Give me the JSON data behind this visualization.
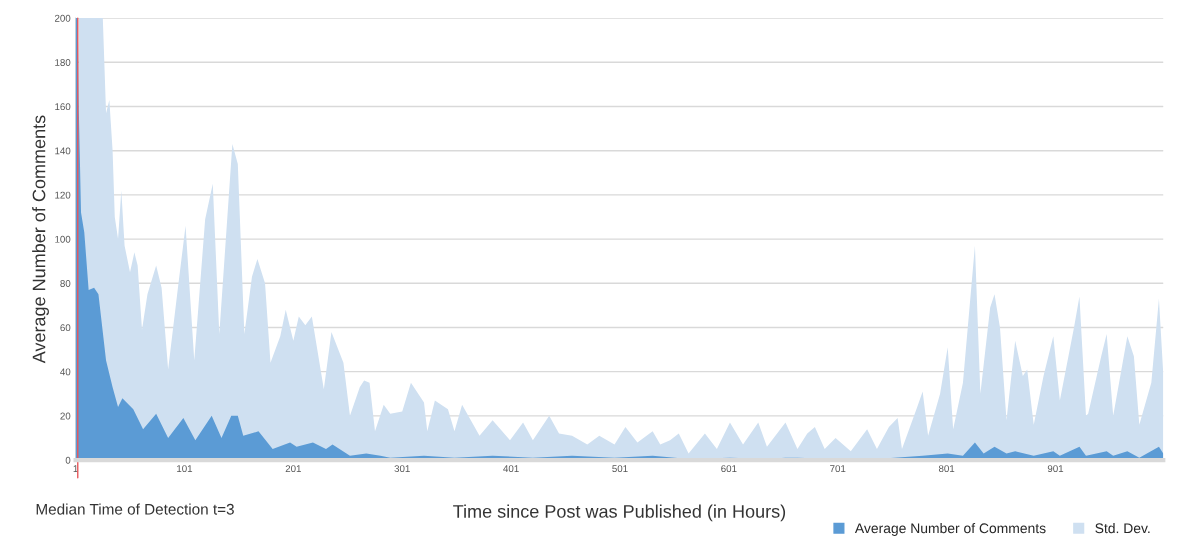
{
  "chart_data": {
    "type": "area",
    "xlabel": "Time since Post was Published (in Hours)",
    "ylabel": "Average Number of Comments",
    "xlim": [
      1,
      1000
    ],
    "xticks": [
      1,
      101,
      201,
      301,
      401,
      501,
      601,
      701,
      801,
      901
    ],
    "ylim": [
      0,
      200
    ],
    "yticks": [
      0,
      20,
      40,
      60,
      80,
      100,
      120,
      140,
      160,
      180,
      200
    ],
    "grid": "y",
    "legend": "bottom right",
    "ref_lines": [
      {
        "axis": "x",
        "value": 3,
        "color": "#e8575a"
      }
    ],
    "annotations": [
      "Median Time of Detection t=3"
    ],
    "series": [
      {
        "name": "Average Number of Comments",
        "color": "#5b9bd5",
        "x": [
          1,
          3,
          4,
          6,
          9,
          13,
          18,
          22,
          29,
          35,
          40,
          44,
          54,
          63,
          75,
          86,
          100,
          111,
          126,
          135,
          144,
          150,
          155,
          169,
          182,
          198,
          204,
          219,
          231,
          237,
          253,
          268,
          281,
          290,
          321,
          349,
          384,
          421,
          457,
          496,
          531,
          564,
          602,
          636,
          653,
          664,
          699,
          737,
          779,
          802,
          816,
          827,
          835,
          845,
          856,
          864,
          881,
          899,
          905,
          923,
          929,
          948,
          954,
          967,
          978,
          996,
          1000
        ],
        "values": [
          200,
          200,
          158,
          112,
          103,
          77,
          78,
          75,
          45,
          33,
          24,
          28,
          23,
          14,
          21,
          10,
          19,
          9,
          20,
          10,
          20,
          20,
          11,
          13,
          5,
          8,
          6,
          8,
          5,
          7,
          2,
          3,
          2,
          1,
          2,
          1,
          2,
          1,
          2,
          1,
          2,
          0.5,
          1,
          0.5,
          1,
          1,
          0.5,
          0.5,
          2,
          3,
          2,
          8,
          3,
          6,
          3,
          4,
          2,
          4,
          2,
          6,
          2,
          4,
          2,
          4,
          1,
          6,
          3
        ]
      },
      {
        "name": "Std. Dev.",
        "color": "#cfe0f1",
        "x": [
          4,
          26,
          29,
          32,
          35,
          37,
          40,
          43,
          46,
          51,
          55,
          58,
          62,
          67,
          75,
          80,
          86,
          95,
          102,
          110,
          120,
          127,
          133,
          145,
          150,
          156,
          163,
          168,
          175,
          180,
          189,
          194,
          201,
          206,
          212,
          218,
          229,
          236,
          247,
          253,
          262,
          266,
          271,
          276,
          284,
          290,
          301,
          309,
          321,
          324,
          331,
          343,
          349,
          356,
          372,
          384,
          400,
          412,
          421,
          436,
          445,
          457,
          471,
          482,
          496,
          506,
          517,
          531,
          538,
          547,
          555,
          564,
          579,
          590,
          602,
          614,
          628,
          636,
          653,
          664,
          673,
          680,
          689,
          699,
          713,
          728,
          737,
          748,
          756,
          760,
          774,
          779,
          784,
          795,
          802,
          807,
          816,
          827,
          832,
          841,
          845,
          850,
          856,
          864,
          871,
          875,
          881,
          890,
          899,
          905,
          918,
          923,
          929,
          931,
          943,
          948,
          954,
          967,
          973,
          978,
          989,
          996,
          1000
        ],
        "values": [
          200,
          200,
          157,
          163,
          140,
          110,
          100,
          122,
          97,
          85,
          94,
          88,
          59,
          75,
          88,
          78,
          41,
          78,
          106,
          45,
          109,
          125,
          57,
          143,
          134,
          57,
          83,
          91,
          80,
          44,
          56,
          68,
          54,
          65,
          61,
          65,
          32,
          58,
          44,
          20,
          33,
          36,
          35,
          13,
          25,
          21,
          22,
          35,
          26,
          13,
          27,
          23,
          13,
          25,
          11,
          18,
          9,
          17,
          9,
          20,
          12,
          11,
          7,
          11,
          7,
          15,
          8,
          13,
          7,
          9,
          12,
          3,
          12,
          5,
          17,
          7,
          17,
          6,
          17,
          5,
          12,
          15,
          5,
          10,
          4,
          14,
          5,
          15,
          19,
          5,
          24,
          31,
          11,
          30,
          51,
          14,
          35,
          97,
          30,
          69,
          75,
          60,
          18,
          54,
          38,
          41,
          16,
          38,
          56,
          27,
          60,
          74,
          20,
          21,
          47,
          57,
          20,
          56,
          47,
          16,
          35,
          73,
          39
        ]
      }
    ]
  }
}
